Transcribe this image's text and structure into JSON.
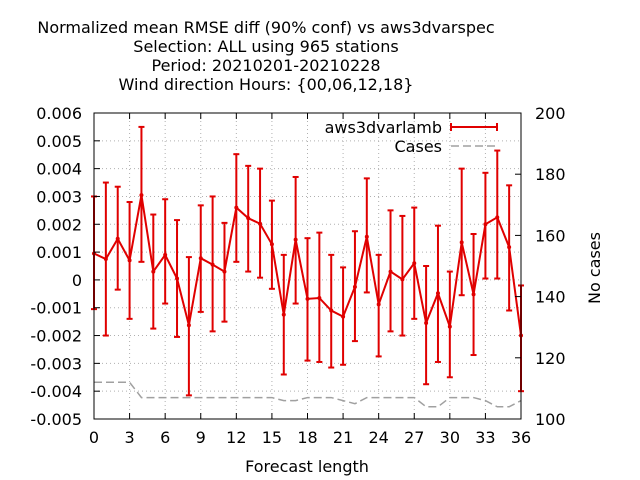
{
  "chart_data": {
    "type": "line",
    "title_lines": [
      "Normalized mean RMSE diff (90% conf) vs aws3dvarspec",
      "Selection: ALL using   965 stations",
      "Period: 20210201-20210228",
      "Wind direction   Hours: {00,06,12,18}"
    ],
    "xlabel": "Forecast length",
    "ylabel_left": "",
    "ylabel_right": "No cases",
    "xlim": [
      0,
      36
    ],
    "ylim_left": [
      -0.005,
      0.006
    ],
    "ylim_right": [
      100,
      200
    ],
    "x_ticks": [
      0,
      3,
      6,
      9,
      12,
      15,
      18,
      21,
      24,
      27,
      30,
      33,
      36
    ],
    "x_tick_labels": [
      "0",
      "3",
      "6",
      "9",
      "12",
      "15",
      "18",
      "21",
      "24",
      "27",
      "30",
      "33",
      "36"
    ],
    "y_ticks_left": [
      -0.005,
      -0.004,
      -0.003,
      -0.002,
      -0.001,
      0,
      0.001,
      0.002,
      0.003,
      0.004,
      0.005,
      0.006
    ],
    "y_tick_labels_left": [
      "-0.005",
      "-0.004",
      "-0.003",
      "-0.002",
      "-0.001",
      "0",
      "0.001",
      "0.002",
      "0.003",
      "0.004",
      "0.005",
      "0.006"
    ],
    "y_ticks_right": [
      100,
      120,
      140,
      160,
      180,
      200
    ],
    "y_tick_labels_right": [
      "100",
      "120",
      "140",
      "160",
      "180",
      "200"
    ],
    "grid": true,
    "legend_position": "top-right",
    "series": [
      {
        "name": "aws3dvarlamb",
        "axis": "left",
        "color": "#e00000",
        "style": "line-errorbars",
        "x": [
          0,
          1,
          2,
          3,
          4,
          5,
          6,
          7,
          8,
          9,
          10,
          11,
          12,
          13,
          14,
          15,
          16,
          17,
          18,
          19,
          20,
          21,
          22,
          23,
          24,
          25,
          26,
          27,
          28,
          29,
          30,
          31,
          32,
          33,
          34,
          35,
          36
        ],
        "y": [
          0.00095,
          0.00075,
          0.00148,
          0.0007,
          0.00305,
          0.0003,
          0.0009,
          5e-05,
          -0.00163,
          0.00078,
          0.00055,
          0.0003,
          0.0026,
          0.00222,
          0.00202,
          0.00128,
          -0.00125,
          0.00145,
          -0.00068,
          -0.00065,
          -0.0011,
          -0.00132,
          -0.00025,
          0.00155,
          -0.00088,
          0.0003,
          2e-05,
          0.0006,
          -0.00155,
          -0.00048,
          -0.00168,
          0.00135,
          -0.00052,
          0.002,
          0.00225,
          0.00118,
          -0.002
        ],
        "err_low": [
          -0.00105,
          -0.002,
          -0.00035,
          -0.0014,
          0.00065,
          -0.00175,
          -0.00085,
          -0.00205,
          -0.00415,
          -0.00115,
          -0.00185,
          -0.0015,
          0.00065,
          0.0003,
          8e-05,
          -0.00032,
          -0.0034,
          -0.00085,
          -0.0029,
          -0.00295,
          -0.00315,
          -0.00305,
          -0.0022,
          -0.00045,
          -0.00275,
          -0.00185,
          -0.002,
          -0.0014,
          -0.00375,
          -0.00295,
          -0.0035,
          -0.00055,
          -0.0027,
          5e-05,
          5e-05,
          -0.0011,
          -0.004
        ],
        "err_high": [
          0.003,
          0.0035,
          0.00335,
          0.0028,
          0.0055,
          0.00235,
          0.0029,
          0.00215,
          0.00082,
          0.00268,
          0.003,
          0.00205,
          0.00452,
          0.0041,
          0.004,
          0.00285,
          0.0009,
          0.0037,
          0.0015,
          0.0017,
          0.0009,
          0.00045,
          0.00175,
          0.00365,
          0.0009,
          0.0025,
          0.0023,
          0.0026,
          0.0005,
          0.00195,
          0.0003,
          0.004,
          0.00165,
          0.00385,
          0.00465,
          0.0034,
          -0.0002
        ]
      },
      {
        "name": "Cases",
        "axis": "right",
        "color": "#a0a0a0",
        "style": "dashed",
        "x": [
          0,
          1,
          2,
          3,
          4,
          5,
          6,
          7,
          8,
          9,
          10,
          11,
          12,
          13,
          14,
          15,
          16,
          17,
          18,
          19,
          20,
          21,
          22,
          23,
          24,
          25,
          26,
          27,
          28,
          29,
          30,
          31,
          32,
          33,
          34,
          35,
          36
        ],
        "y": [
          112,
          112,
          112,
          112,
          107,
          107,
          107,
          107,
          107,
          107,
          107,
          107,
          107,
          107,
          107,
          107,
          106,
          106,
          107,
          107,
          107,
          106,
          105,
          107,
          107,
          107,
          107,
          107,
          104,
          104,
          107,
          107,
          107,
          106,
          104,
          104,
          106
        ]
      }
    ]
  }
}
